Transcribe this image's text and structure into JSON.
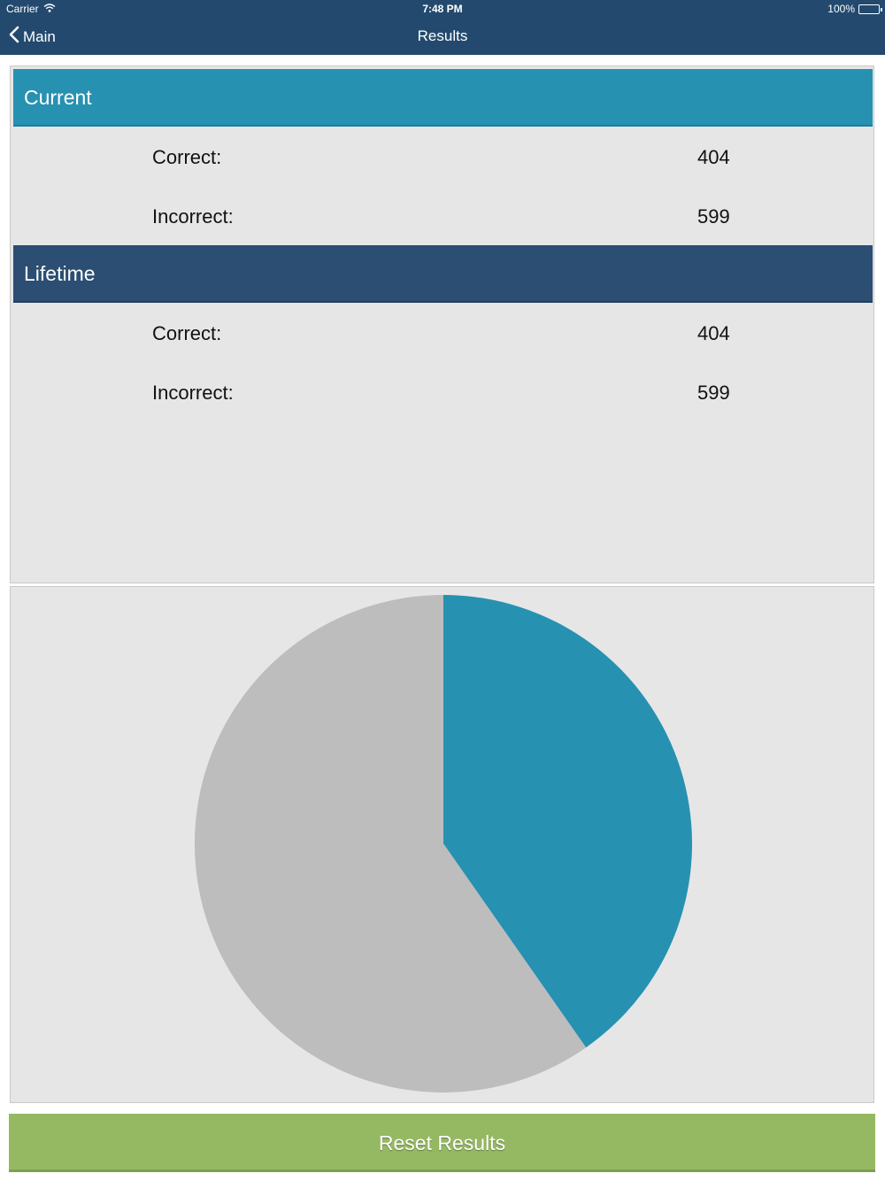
{
  "status_bar": {
    "carrier": "Carrier",
    "time": "7:48 PM",
    "battery": "100%"
  },
  "nav": {
    "back_label": "Main",
    "title": "Results"
  },
  "current": {
    "header": "Current",
    "correct_label": "Correct:",
    "correct_value": "404",
    "incorrect_label": "Incorrect:",
    "incorrect_value": "599"
  },
  "lifetime": {
    "header": "Lifetime",
    "correct_label": "Correct:",
    "correct_value": "404",
    "incorrect_label": "Incorrect:",
    "incorrect_value": "599"
  },
  "reset_button": "Reset Results",
  "colors": {
    "nav_bg": "#234a6e",
    "current_header": "#2791b1",
    "lifetime_header": "#2b4e72",
    "reset_button": "#95b962",
    "pie_correct": "#2791b1",
    "pie_incorrect": "#bdbdbd"
  },
  "chart_data": {
    "type": "pie",
    "slices": [
      {
        "value": 404,
        "color": "#2791b1"
      },
      {
        "value": 599,
        "color": "#bdbdbd"
      }
    ]
  }
}
